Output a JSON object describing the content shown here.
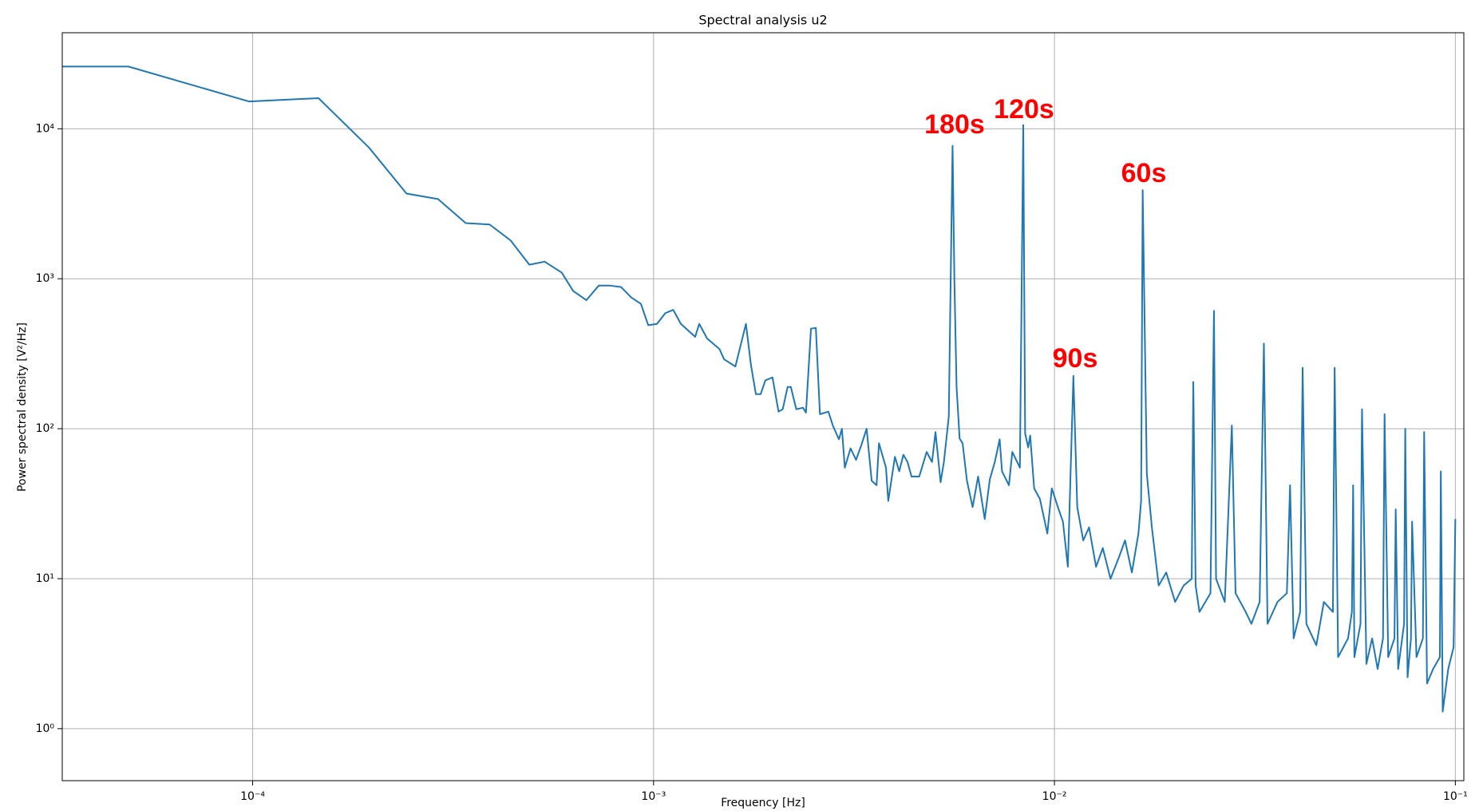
{
  "chart_data": {
    "type": "line",
    "title": "Spectral analysis u2",
    "xlabel": "Frequency [Hz]",
    "ylabel": "Power spectral density [V²/Hz]",
    "xscale": "log",
    "yscale": "log",
    "grid": true,
    "xlim": [
      3.35e-05,
      0.105
    ],
    "ylim": [
      0.45,
      43700
    ],
    "xticks": [
      {
        "value": 0.0001,
        "label": "10⁻⁴"
      },
      {
        "value": 0.001,
        "label": "10⁻³"
      },
      {
        "value": 0.01,
        "label": "10⁻²"
      },
      {
        "value": 0.1,
        "label": "10⁻¹"
      }
    ],
    "yticks": [
      {
        "value": 1,
        "label": "10⁰"
      },
      {
        "value": 10,
        "label": "10¹"
      },
      {
        "value": 100,
        "label": "10²"
      },
      {
        "value": 1000,
        "label": "10³"
      },
      {
        "value": 10000,
        "label": "10⁴"
      }
    ],
    "annotations": [
      "180s",
      "120s",
      "90s",
      "60s"
    ],
    "x": [
      3.35e-05,
      4.9e-05,
      9.8e-05,
      0.000146,
      0.000195,
      0.000242,
      0.00029,
      0.00034,
      0.00039,
      0.00044,
      0.00049,
      0.000535,
      0.00059,
      0.00063,
      0.00068,
      0.00073,
      0.00078,
      0.00083,
      0.00088,
      0.00093,
      0.00097,
      0.00102,
      0.00107,
      0.00112,
      0.00117,
      0.00127,
      0.0013,
      0.00136,
      0.00146,
      0.0015,
      0.0016,
      0.0017,
      0.00175,
      0.0018,
      0.00185,
      0.0019,
      0.00198,
      0.00205,
      0.0021,
      0.00216,
      0.0022,
      0.00227,
      0.00236,
      0.0024,
      0.00247,
      0.00254,
      0.0026,
      0.00273,
      0.0028,
      0.0029,
      0.00295,
      0.003,
      0.0031,
      0.0032,
      0.0033,
      0.0034,
      0.0035,
      0.0036,
      0.00365,
      0.0038,
      0.00385,
      0.004,
      0.0041,
      0.0042,
      0.0043,
      0.0044,
      0.0046,
      0.0048,
      0.00495,
      0.00505,
      0.0052,
      0.0053,
      0.00545,
      0.00557,
      0.00563,
      0.0057,
      0.0058,
      0.0059,
      0.00605,
      0.00625,
      0.00645,
      0.0067,
      0.0069,
      0.0071,
      0.0073,
      0.0074,
      0.0077,
      0.00785,
      0.0082,
      0.00836,
      0.00845,
      0.0086,
      0.0087,
      0.0089,
      0.0092,
      0.0096,
      0.00985,
      0.0102,
      0.0105,
      0.0108,
      0.01115,
      0.0114,
      0.0118,
      0.0122,
      0.0127,
      0.0132,
      0.0138,
      0.0145,
      0.015,
      0.0156,
      0.0162,
      0.01645,
      0.0166,
      0.017,
      0.0175,
      0.0182,
      0.019,
      0.02,
      0.021,
      0.022,
      0.0222,
      0.0225,
      0.023,
      0.0245,
      0.025,
      0.0253,
      0.0266,
      0.0277,
      0.0283,
      0.03,
      0.031,
      0.0325,
      0.0333,
      0.034,
      0.036,
      0.038,
      0.0387,
      0.0395,
      0.041,
      0.0416,
      0.0425,
      0.045,
      0.047,
      0.0495,
      0.05,
      0.051,
      0.054,
      0.0552,
      0.0556,
      0.056,
      0.058,
      0.0585,
      0.06,
      0.062,
      0.064,
      0.066,
      0.0666,
      0.068,
      0.0705,
      0.071,
      0.072,
      0.0745,
      0.075,
      0.076,
      0.0775,
      0.078,
      0.08,
      0.083,
      0.0836,
      0.085,
      0.088,
      0.0915,
      0.092,
      0.093,
      0.096,
      0.099,
      0.1
    ],
    "series": [
      {
        "color": "#1f77b4",
        "values": [
          26000,
          26000,
          15200,
          16000,
          7500,
          3700,
          3400,
          2350,
          2300,
          1800,
          1240,
          1300,
          1100,
          830,
          720,
          900,
          900,
          880,
          750,
          680,
          490,
          500,
          590,
          620,
          500,
          410,
          500,
          400,
          340,
          290,
          260,
          500,
          265,
          170,
          170,
          210,
          220,
          130,
          135,
          190,
          190,
          135,
          138,
          128,
          465,
          470,
          125,
          130,
          105,
          85,
          100,
          55,
          74,
          62,
          78,
          100,
          45,
          42,
          80,
          55,
          33,
          65,
          52,
          67,
          60,
          48,
          48,
          70,
          60,
          95,
          44,
          60,
          120,
          7700,
          950,
          190,
          86,
          80,
          45,
          30,
          48,
          25,
          46,
          60,
          85,
          52,
          42,
          70,
          55,
          10600,
          93,
          75,
          90,
          40,
          34,
          20,
          40,
          30,
          24,
          12,
          225,
          30,
          18,
          22,
          12,
          16,
          10,
          14,
          18,
          11,
          20,
          33,
          3900,
          50,
          22,
          9,
          11,
          7,
          9,
          10,
          205,
          9,
          6,
          8,
          610,
          10,
          7,
          105,
          8,
          6,
          5,
          7,
          370,
          5,
          7,
          8,
          42,
          4,
          6,
          255,
          5,
          3.6,
          7,
          6,
          255,
          3,
          4,
          6,
          42,
          3,
          5,
          135,
          2.7,
          4,
          2.5,
          4,
          125,
          3,
          4,
          29,
          2.5,
          5,
          100,
          2.2,
          4,
          24,
          3,
          4,
          95,
          2,
          2.5,
          3,
          52,
          1.3,
          2.5,
          3.5,
          25
        ]
      }
    ]
  }
}
